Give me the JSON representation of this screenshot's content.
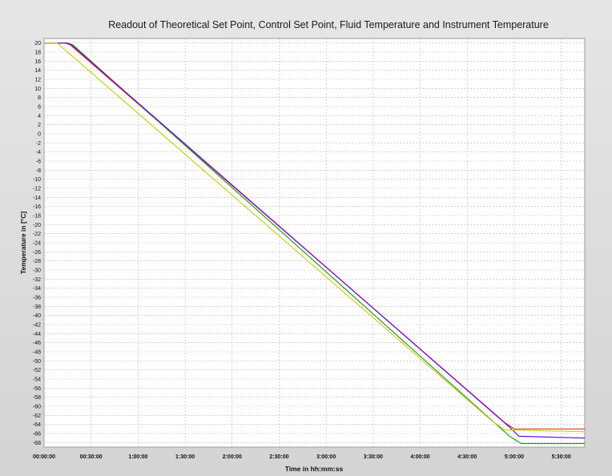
{
  "chart_data": {
    "type": "line",
    "title": "Readout of Theoretical Set Point, Control Set Point, Fluid Temperature and Instrument Temperature",
    "xlabel": "Time in hh:mm:ss",
    "ylabel": "Temperature in [°C]",
    "xlim": [
      0,
      20700
    ],
    "ylim": [
      -69,
      21
    ],
    "grid": true,
    "x_ticks": [
      {
        "value": 0,
        "label": "00:00:00"
      },
      {
        "value": 1800,
        "label": "00:30:00"
      },
      {
        "value": 3600,
        "label": "1:00:00"
      },
      {
        "value": 5400,
        "label": "1:30:00"
      },
      {
        "value": 7200,
        "label": "2:00:00"
      },
      {
        "value": 9000,
        "label": "2:30:00"
      },
      {
        "value": 10800,
        "label": "3:00:00"
      },
      {
        "value": 12600,
        "label": "3:30:00"
      },
      {
        "value": 14400,
        "label": "4:00:00"
      },
      {
        "value": 16200,
        "label": "4:30:00"
      },
      {
        "value": 18000,
        "label": "5:00:00"
      },
      {
        "value": 19800,
        "label": "5:30:00"
      }
    ],
    "y_ticks": [
      20,
      18,
      16,
      14,
      12,
      10,
      8,
      6,
      4,
      2,
      0,
      -2,
      -4,
      -6,
      -8,
      -10,
      -12,
      -14,
      -16,
      -18,
      -20,
      -22,
      -24,
      -26,
      -28,
      -30,
      -32,
      -34,
      -36,
      -38,
      -40,
      -42,
      -44,
      -46,
      -48,
      -50,
      -52,
      -54,
      -56,
      -58,
      -60,
      -62,
      -64,
      -66,
      -68
    ],
    "series": [
      {
        "color": "#e0332a",
        "points": [
          [
            0,
            20
          ],
          [
            800,
            20
          ],
          [
            1000,
            19.6
          ],
          [
            17640,
            -63.6
          ],
          [
            18000,
            -65
          ],
          [
            20700,
            -65
          ]
        ]
      },
      {
        "color": "#2a9a2a",
        "points": [
          [
            0,
            20
          ],
          [
            900,
            20
          ],
          [
            1100,
            19.6
          ],
          [
            17820,
            -66.6
          ],
          [
            18270,
            -68.2
          ],
          [
            20700,
            -68.2
          ]
        ]
      },
      {
        "color": "#6a0dd6",
        "points": [
          [
            0,
            20
          ],
          [
            860,
            20
          ],
          [
            1050,
            19.6
          ],
          [
            17820,
            -64.6
          ],
          [
            18180,
            -66.6
          ],
          [
            20700,
            -67
          ]
        ]
      },
      {
        "color": "#cccc20",
        "points": [
          [
            0,
            20
          ],
          [
            500,
            20
          ],
          [
            700,
            19
          ],
          [
            17100,
            -63
          ],
          [
            17640,
            -65.2
          ],
          [
            20700,
            -65.6
          ]
        ]
      }
    ]
  }
}
